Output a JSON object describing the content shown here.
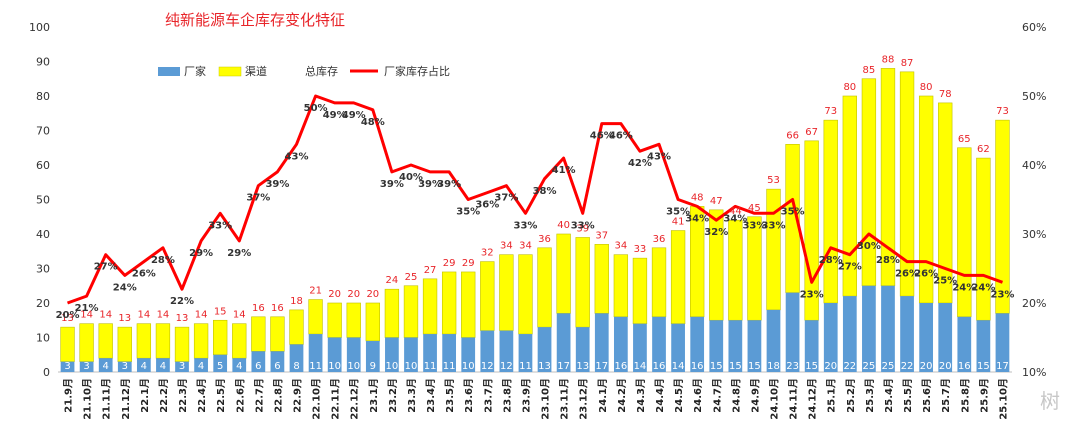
{
  "chart_data": {
    "type": "bar",
    "title": "纯新能源车企库存变化特征",
    "categories": [
      "21.9月",
      "21.10月",
      "21.11月",
      "21.12月",
      "22.1月",
      "22.2月",
      "22.3月",
      "22.4月",
      "22.5月",
      "22.6月",
      "22.7月",
      "22.8月",
      "22.9月",
      "22.10月",
      "22.11月",
      "22.12月",
      "23.1月",
      "23.2月",
      "23.3月",
      "23.4月",
      "23.5月",
      "23.6月",
      "23.7月",
      "23.8月",
      "23.9月",
      "23.10月",
      "23.11月",
      "23.12月",
      "24.1月",
      "24.2月",
      "24.3月",
      "24.4月",
      "24.5月",
      "24.6月",
      "24.7月",
      "24.8月",
      "24.9月",
      "24.10月",
      "24.11月",
      "24.12月",
      "25.1月",
      "25.2月",
      "25.3月",
      "25.4月",
      "25.5月",
      "25.6月",
      "25.7月",
      "25.8月",
      "25.9月",
      "25.10月"
    ],
    "series": [
      {
        "name": "厂家",
        "values": [
          3,
          3,
          4,
          3,
          4,
          4,
          3,
          4,
          5,
          4,
          6,
          6,
          8,
          11,
          10,
          10,
          9,
          10,
          10,
          11,
          11,
          10,
          12,
          12,
          11,
          13,
          17,
          13,
          17,
          16,
          14,
          16,
          14,
          16,
          15,
          15,
          15,
          18,
          23,
          15,
          20,
          22,
          25,
          25,
          22,
          20,
          20,
          16,
          15,
          17
        ]
      },
      {
        "name": "渠道",
        "values": [
          10,
          11,
          10,
          10,
          10,
          10,
          10,
          10,
          10,
          10,
          10,
          10,
          10,
          10,
          10,
          10,
          11,
          14,
          15,
          16,
          18,
          19,
          20,
          22,
          23,
          23,
          23,
          26,
          20,
          18,
          19,
          20,
          27,
          32,
          32,
          29,
          30,
          35,
          43,
          52,
          53,
          58,
          60,
          63,
          65,
          60,
          58,
          49,
          47,
          56
        ]
      },
      {
        "name": "总库存",
        "values": [
          13,
          14,
          14,
          13,
          14,
          14,
          13,
          14,
          15,
          14,
          16,
          16,
          18,
          21,
          20,
          20,
          20,
          24,
          25,
          27,
          29,
          29,
          32,
          34,
          34,
          36,
          40,
          39,
          37,
          34,
          33,
          36,
          41,
          48,
          47,
          44,
          45,
          53,
          66,
          67,
          73,
          80,
          85,
          88,
          87,
          80,
          78,
          65,
          62,
          73
        ]
      },
      {
        "name": "厂家库存占比",
        "values": [
          20,
          21,
          27,
          24,
          26,
          28,
          22,
          29,
          33,
          29,
          37,
          39,
          43,
          50,
          49,
          49,
          48,
          39,
          40,
          39,
          39,
          35,
          36,
          37,
          33,
          38,
          41,
          33,
          46,
          46,
          42,
          43,
          35,
          34,
          32,
          34,
          33,
          33,
          35,
          23,
          28,
          27,
          30,
          28,
          26,
          26,
          25,
          24,
          24,
          23
        ]
      }
    ],
    "labels": {
      "factory": [
        "3",
        "3",
        "4",
        "3",
        "4",
        "4",
        "3",
        "4",
        "5",
        "4",
        "6",
        "6",
        "8",
        "11",
        "10",
        "10",
        "9",
        "10",
        "10",
        "11",
        "11",
        "10",
        "12",
        "12",
        "11",
        "13",
        "17",
        "13",
        "17",
        "16",
        "14",
        "16",
        "14",
        "16",
        "15",
        "15",
        "15",
        "18",
        "23",
        "15",
        "20",
        "22",
        "25",
        "25",
        "22",
        "20",
        "20",
        "16",
        "15",
        "17"
      ],
      "total": [
        "13",
        "14",
        "14",
        "13",
        "14",
        "14",
        "13",
        "14",
        "15",
        "14",
        "16",
        "16",
        "18",
        "21",
        "20",
        "20",
        "20",
        "24",
        "25",
        "27",
        "29",
        "29",
        "32",
        "34",
        "34",
        "36",
        "40",
        "39",
        "37",
        "34",
        "33",
        "36",
        "41",
        "48",
        "47",
        "44",
        "45",
        "53",
        "66",
        "67",
        "73",
        "80",
        "85",
        "88",
        "87",
        "80",
        "78",
        "65",
        "62",
        "73"
      ],
      "ratio": [
        "20%",
        "21%",
        "27%",
        "24%",
        "26%",
        "28%",
        "22%",
        "29%",
        "33%",
        "29%",
        "37%",
        "39%",
        "43%",
        "50%",
        "49%",
        "49%",
        "48%",
        "39%",
        "40%",
        "39%",
        "39%",
        "35%",
        "36%",
        "37%",
        "33%",
        "38%",
        "41%",
        "33%",
        "46%",
        "46%",
        "42%",
        "43%",
        "35%",
        "34%",
        "32%",
        "34%",
        "33%",
        "33%",
        "35%",
        "23%",
        "28%",
        "27%",
        "30%",
        "28%",
        "26%",
        "26%",
        "25%",
        "24%",
        "24%",
        "23%"
      ]
    },
    "ylim_left": [
      0,
      100
    ],
    "ylim_right": [
      10,
      60
    ],
    "yticks_left": [
      "0",
      "10",
      "20",
      "30",
      "40",
      "50",
      "60",
      "70",
      "80",
      "90",
      "100"
    ],
    "yticks_right": [
      "10%",
      "20%",
      "30%",
      "40%",
      "50%",
      "60%"
    ],
    "grid": false,
    "legend_placement": "top-left",
    "colors": {
      "factory": "#5b9bd5",
      "channel": "#ffff00",
      "ratio_line": "#ff0000",
      "title": "#e8252a",
      "total_label": "#e8252a"
    }
  },
  "watermark": "树"
}
